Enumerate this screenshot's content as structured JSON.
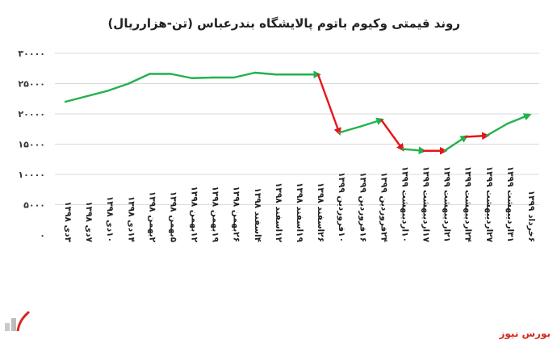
{
  "chart_data": {
    "type": "line",
    "title": "روند قیمتی وکیوم باتوم پالایشگاه بندرعباس (تن-هزارریال)",
    "categories": [
      "۳دی ۱۳۹۸",
      "۷دی ۱۳۹۸",
      "۱۰دی ۱۳۹۸",
      "۱۴دی ۱۳۹۸",
      "۲بهمن ۱۳۹۸",
      "۵بهمن ۱۳۹۸",
      "۱۲بهمن ۱۳۹۸",
      "۱۹بهمن ۱۳۹۸",
      "۲۶بهمن ۱۳۹۸",
      "۴اسفند ۱۳۹۸",
      "۱۲اسفند ۱۳۹۸",
      "۱۹اسفند ۱۳۹۸",
      "۲۶اسفند ۱۳۹۸",
      "۱۰فروردین ۱۳۹۹",
      "۱۶فروردین ۱۳۹۹",
      "۲۴فروردین ۱۳۹۹",
      "۱۰اردیبهشت ۱۳۹۹",
      "۱۷اردیبهشت ۱۳۹۹",
      "۲۱اردیبهشت ۱۳۹۹",
      "۲۴اردیبهشت ۱۳۹۹",
      "۲۷اردیبهشت ۱۳۹۹",
      "۳۱اردیبهشت ۱۳۹۹",
      "۶خرداد ۱۳۹۹"
    ],
    "values": [
      22000,
      22900,
      23800,
      25000,
      26600,
      26600,
      25900,
      26000,
      26000,
      26800,
      26500,
      26500,
      26500,
      16900,
      17900,
      19000,
      14200,
      13900,
      13900,
      16200,
      16400,
      18400,
      19800
    ],
    "segment_direction": [
      "up",
      "up",
      "up",
      "up",
      "up",
      "up",
      "up",
      "up",
      "up",
      "up",
      "up",
      "up",
      "down",
      "up",
      "up",
      "down",
      "up",
      "down",
      "up",
      "down",
      "up",
      "up"
    ],
    "colors": {
      "up": "#22b14c",
      "down": "#e8141a"
    },
    "ylim": [
      0,
      30000
    ],
    "yticks": [
      "۰",
      "۵۰۰۰",
      "۱۰۰۰۰",
      "۱۵۰۰۰",
      "۲۰۰۰۰",
      "۲۵۰۰۰",
      "۳۰۰۰۰"
    ],
    "ytick_values": [
      0,
      5000,
      10000,
      15000,
      20000,
      25000,
      30000
    ],
    "grid": true
  },
  "brand": {
    "text": "بورس نیوز",
    "logo_icon": "bourse-news-logo"
  }
}
